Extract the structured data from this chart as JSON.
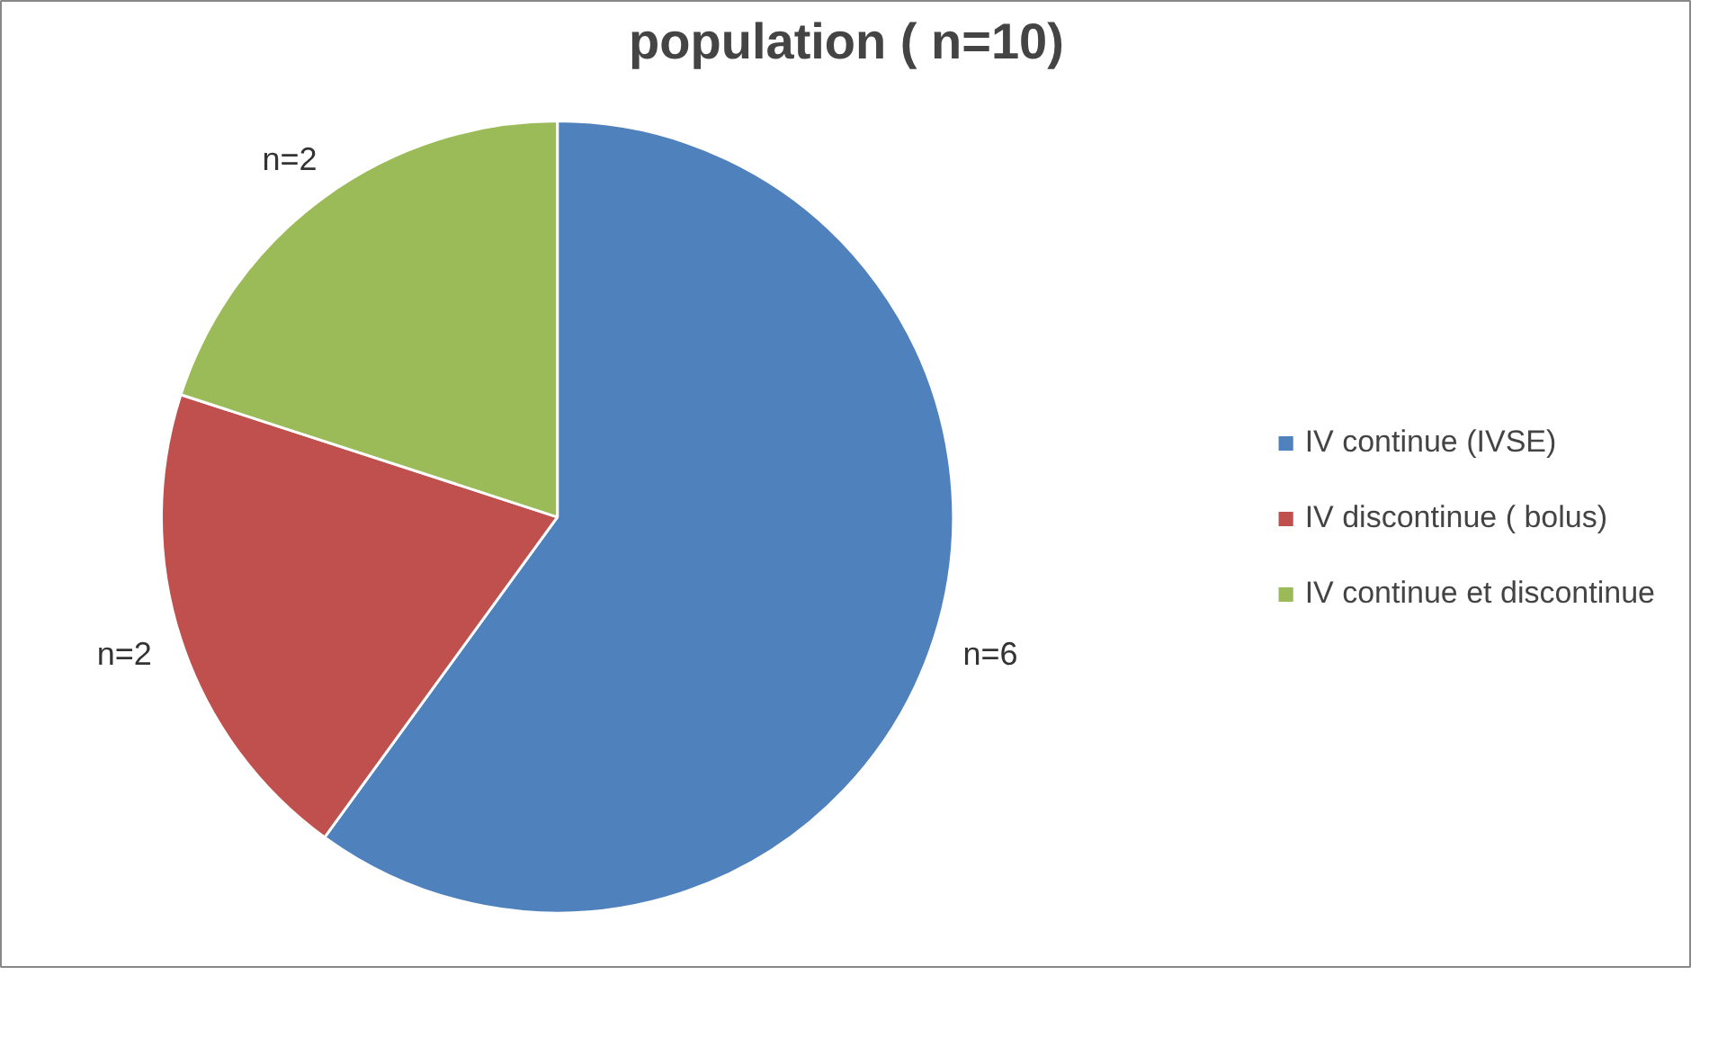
{
  "chart_data": {
    "type": "pie",
    "title": "population ( n=10)",
    "categories": [
      "IV continue (IVSE)",
      "IV discontinue ( bolus)",
      "IV continue et discontinue"
    ],
    "values": [
      6,
      2,
      2
    ],
    "colors": [
      "#4f81bd",
      "#c0504d",
      "#9bbb59"
    ],
    "value_labels": [
      "n=6",
      "n=2",
      "n=2"
    ],
    "legend": "right"
  }
}
